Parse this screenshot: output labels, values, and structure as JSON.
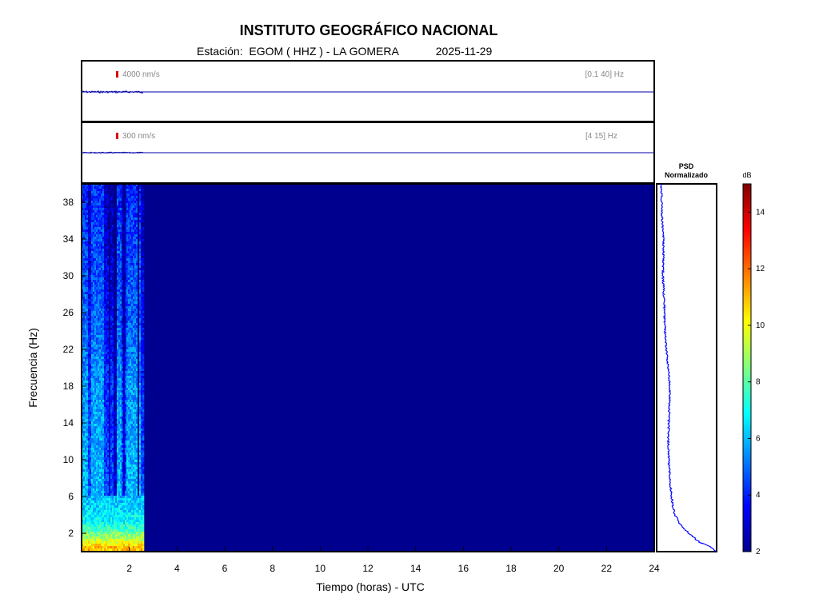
{
  "header": {
    "title": "INSTITUTO GEOGRÁFICO NACIONAL",
    "station_label": "Estación:",
    "station": "EGOM ( HHZ ) - LA GOMERA",
    "date": "2025-11-29"
  },
  "colors": {
    "trace": "#0000aa",
    "scale_marker": "#dd0000",
    "spectrogram_background": "#00008f",
    "psd_line": "#0000ff"
  },
  "chart_data": [
    {
      "type": "line",
      "name": "seismogram-broadband",
      "scale_label": "4000 nm/s",
      "filter_label": "[0.1 40] Hz",
      "x_range": [
        0,
        24
      ],
      "data_end_hours": 2.6
    },
    {
      "type": "line",
      "name": "seismogram-filtered",
      "scale_label": "300 nm/s",
      "filter_label": "[4 15] Hz",
      "x_range": [
        0,
        24
      ],
      "data_end_hours": 2.6
    },
    {
      "type": "heatmap",
      "xlabel": "Tiempo (horas) - UTC",
      "ylabel": "Frecuencia  (Hz)",
      "xlim": [
        0,
        24
      ],
      "ylim": [
        0,
        40
      ],
      "xticks": [
        2,
        4,
        6,
        8,
        10,
        12,
        14,
        16,
        18,
        20,
        22,
        24
      ],
      "yticks": [
        2,
        6,
        10,
        14,
        18,
        22,
        26,
        30,
        34,
        38
      ],
      "data_end_hours": 2.6,
      "background_db": 2,
      "level_by_frequency": [
        {
          "freq": 0.5,
          "db": 11
        },
        {
          "freq": 1.5,
          "db": 9
        },
        {
          "freq": 3,
          "db": 7
        },
        {
          "freq": 6,
          "db": 6
        },
        {
          "freq": 18,
          "db": 5.6
        },
        {
          "freq": 24,
          "db": 5
        },
        {
          "freq": 40,
          "db": 4.2
        }
      ]
    },
    {
      "type": "line",
      "title": "PSD\nNormalizado",
      "ylim": [
        0,
        40
      ],
      "points": [
        {
          "freq": 0,
          "value": 1.0
        },
        {
          "freq": 0.5,
          "value": 0.93
        },
        {
          "freq": 1,
          "value": 0.72
        },
        {
          "freq": 2,
          "value": 0.52
        },
        {
          "freq": 3,
          "value": 0.36
        },
        {
          "freq": 4,
          "value": 0.26
        },
        {
          "freq": 5,
          "value": 0.22
        },
        {
          "freq": 6,
          "value": 0.2
        },
        {
          "freq": 8,
          "value": 0.17
        },
        {
          "freq": 10,
          "value": 0.15
        },
        {
          "freq": 12,
          "value": 0.14
        },
        {
          "freq": 14,
          "value": 0.15
        },
        {
          "freq": 16,
          "value": 0.16
        },
        {
          "freq": 18,
          "value": 0.17
        },
        {
          "freq": 20,
          "value": 0.14
        },
        {
          "freq": 22,
          "value": 0.1
        },
        {
          "freq": 24,
          "value": 0.08
        },
        {
          "freq": 26,
          "value": 0.07
        },
        {
          "freq": 28,
          "value": 0.06
        },
        {
          "freq": 30,
          "value": 0.04
        },
        {
          "freq": 32,
          "value": 0.05
        },
        {
          "freq": 34,
          "value": 0.05
        },
        {
          "freq": 36,
          "value": 0.03
        },
        {
          "freq": 38,
          "value": 0.02
        },
        {
          "freq": 40,
          "value": 0.01
        }
      ]
    },
    {
      "type": "heatmap",
      "name": "colorbar",
      "unit": "dB",
      "range": [
        2,
        15
      ],
      "ticks": [
        2,
        4,
        6,
        8,
        10,
        12,
        14
      ]
    }
  ]
}
